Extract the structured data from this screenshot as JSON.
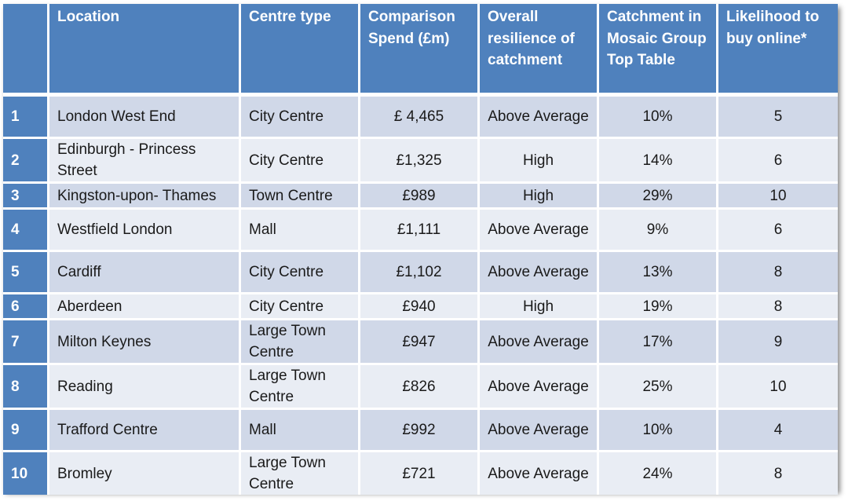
{
  "headers": {
    "num": "",
    "location": "Location",
    "centre_type": "Centre type",
    "spend": "Comparison Spend (£m)",
    "resilience": "Overall resilience of catchment",
    "catchment": "Catchment in Mosaic Group Top Table",
    "likelihood": "Likelihood to buy online*"
  },
  "rows": [
    {
      "num": "1",
      "location": "London West End",
      "centre_type": "City Centre",
      "spend": "£ 4,465",
      "resilience": "Above Average",
      "catchment": "10%",
      "likelihood": "5"
    },
    {
      "num": "2",
      "location": "Edinburgh - Princess Street",
      "centre_type": "City Centre",
      "spend": "£1,325",
      "resilience": "High",
      "catchment": "14%",
      "likelihood": "6"
    },
    {
      "num": "3",
      "location": "Kingston-upon- Thames",
      "centre_type": "Town Centre",
      "spend": "£989",
      "resilience": "High",
      "catchment": "29%",
      "likelihood": "10"
    },
    {
      "num": "4",
      "location": "Westfield London",
      "centre_type": "Mall",
      "spend": "£1,111",
      "resilience": "Above Average",
      "catchment": "9%",
      "likelihood": "6"
    },
    {
      "num": "5",
      "location": "Cardiff",
      "centre_type": "City Centre",
      "spend": "£1,102",
      "resilience": "Above Average",
      "catchment": "13%",
      "likelihood": "8"
    },
    {
      "num": "6",
      "location": "Aberdeen",
      "centre_type": "City Centre",
      "spend": "£940",
      "resilience": "High",
      "catchment": "19%",
      "likelihood": "8"
    },
    {
      "num": "7",
      "location": "Milton Keynes",
      "centre_type": "Large Town Centre",
      "spend": "£947",
      "resilience": "Above Average",
      "catchment": "17%",
      "likelihood": "9"
    },
    {
      "num": "8",
      "location": "Reading",
      "centre_type": "Large Town Centre",
      "spend": "£826",
      "resilience": "Above Average",
      "catchment": "25%",
      "likelihood": "10"
    },
    {
      "num": "9",
      "location": "Trafford Centre",
      "centre_type": "Mall",
      "spend": "£992",
      "resilience": "Above Average",
      "catchment": "10%",
      "likelihood": "4"
    },
    {
      "num": "10",
      "location": "Bromley",
      "centre_type": "Large Town Centre",
      "spend": "£721",
      "resilience": "Above Average",
      "catchment": "24%",
      "likelihood": "8"
    }
  ]
}
